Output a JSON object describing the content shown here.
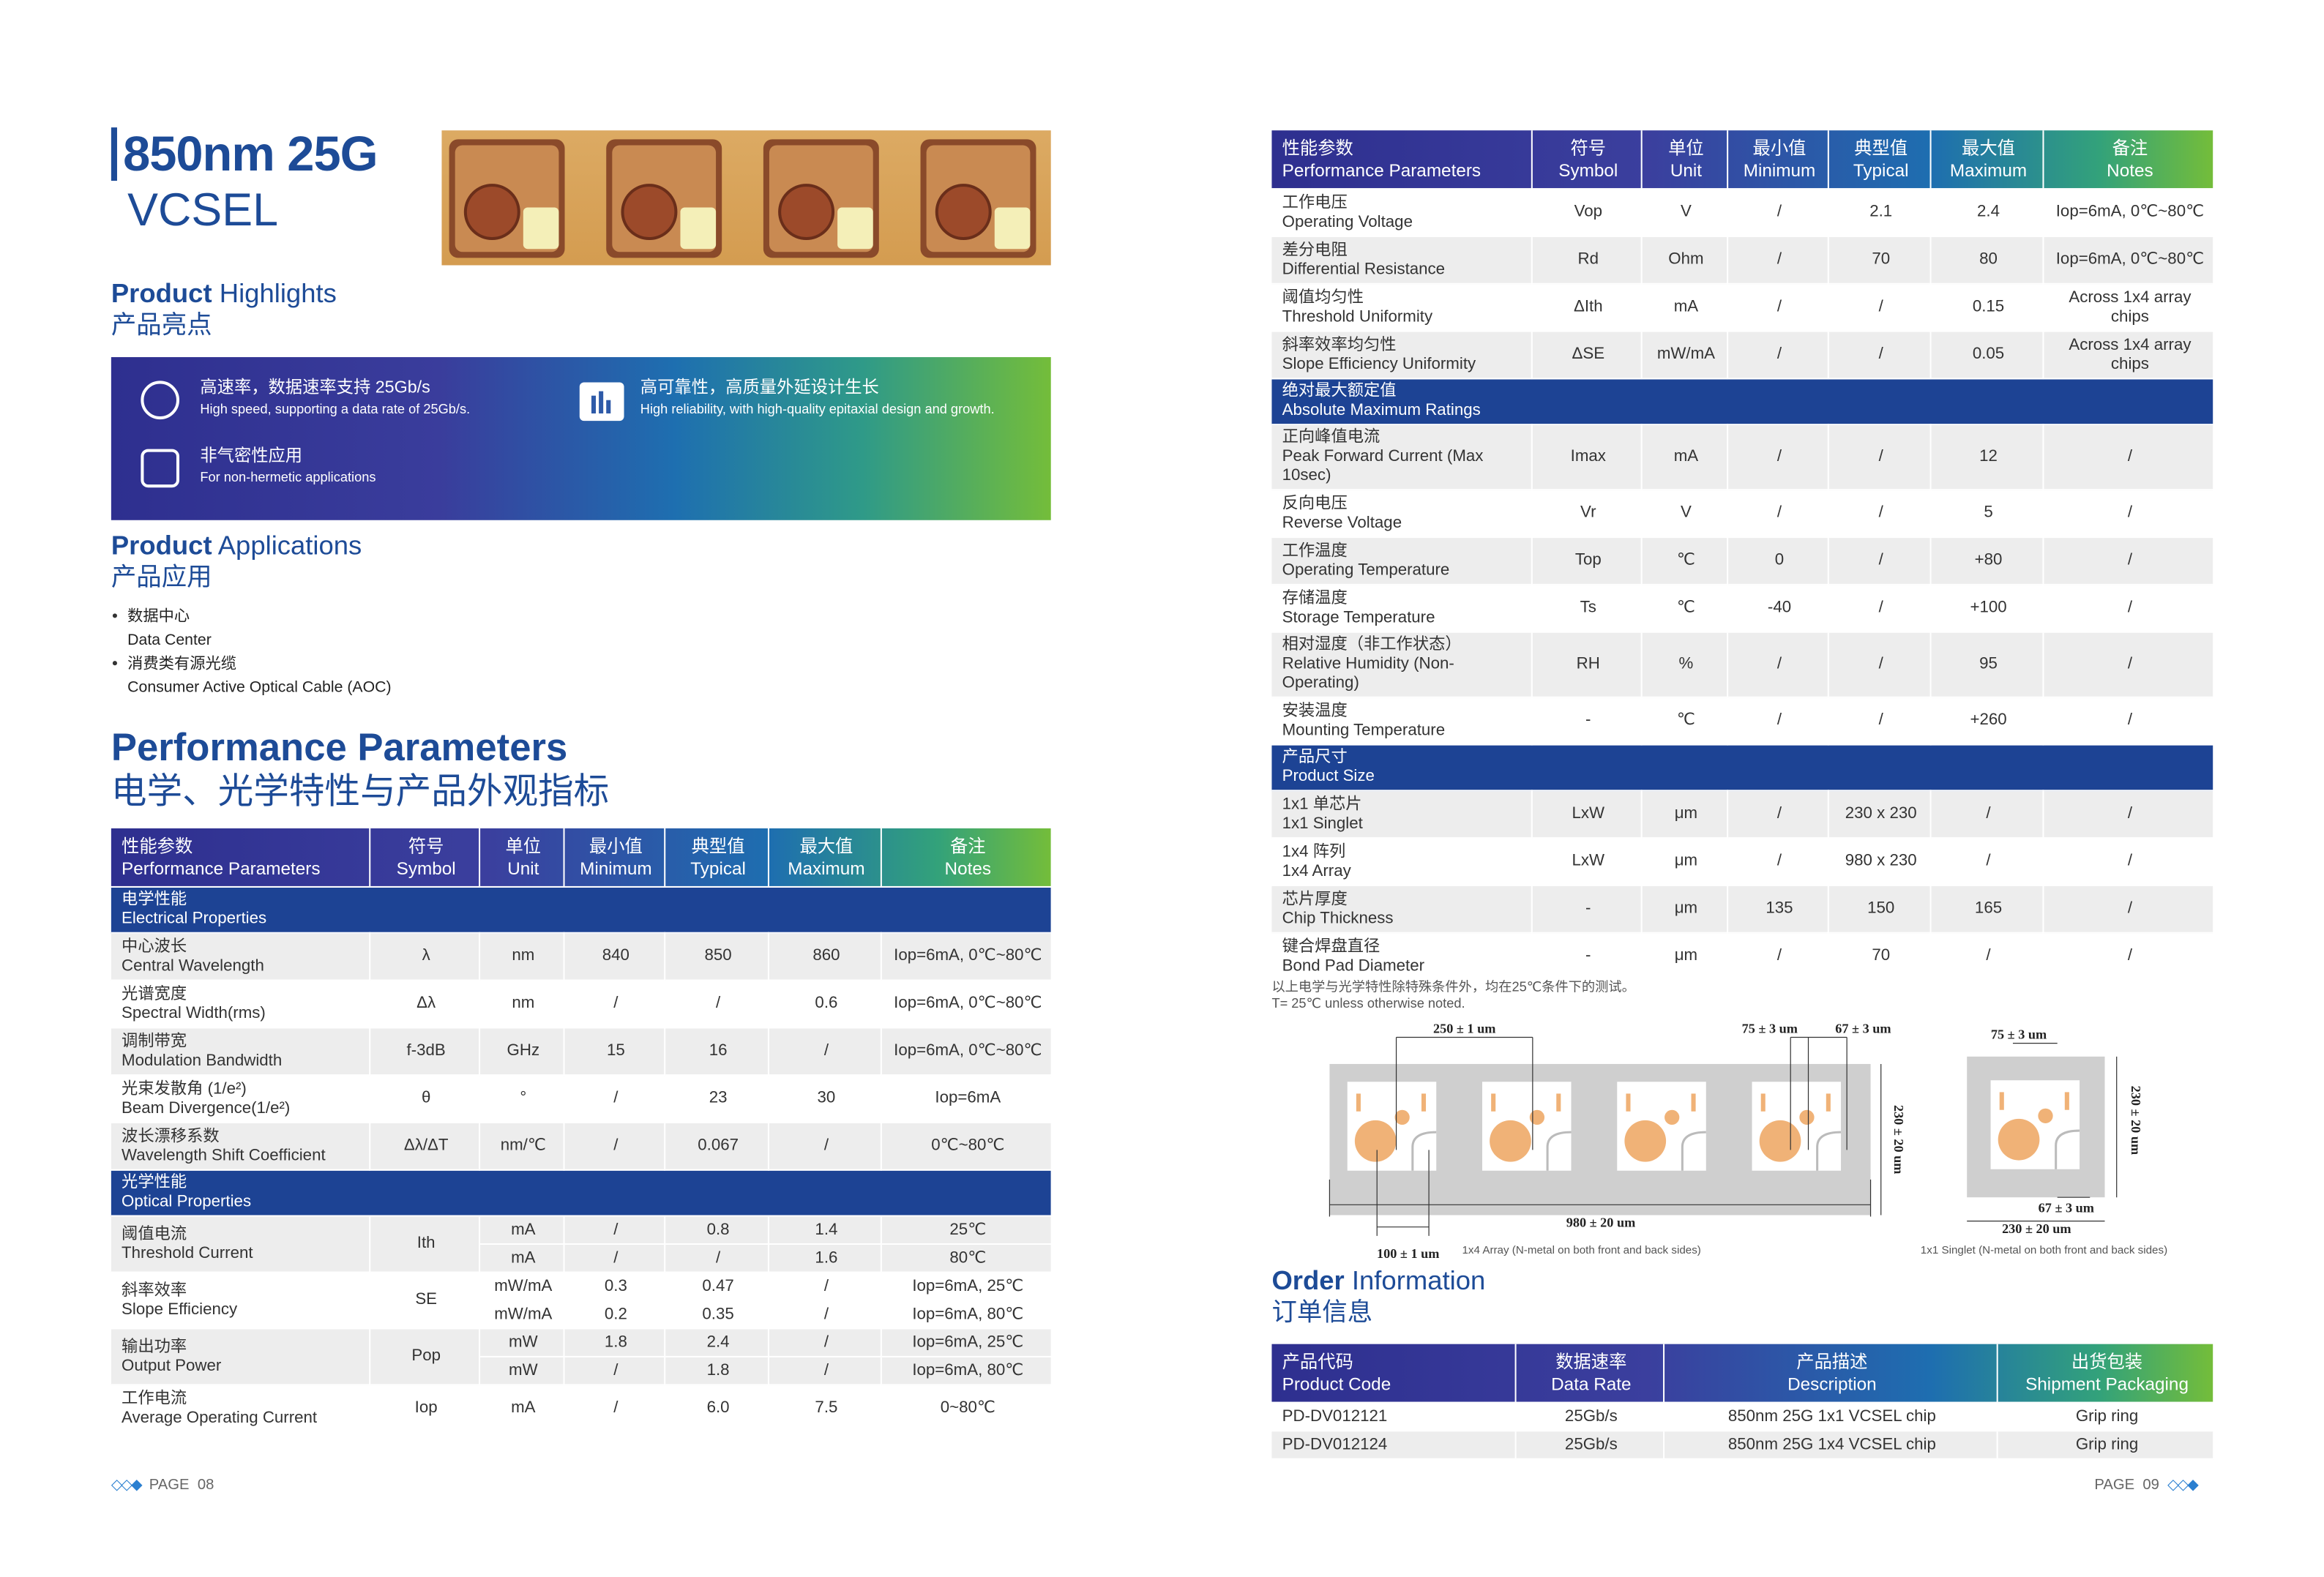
{
  "left": {
    "title": {
      "line1": "850nm 25G",
      "line2": "VCSEL"
    },
    "highlights": {
      "heading_bold": "Product",
      "heading_light": "Highlights",
      "heading_cn": "产品亮点",
      "items": [
        {
          "cn": "高速率，数据速率支持 25Gb/s",
          "en": "High speed, supporting a data rate of 25Gb/s."
        },
        {
          "cn": "高可靠性，高质量外延设计生长",
          "en": "High reliability, with high-quality epitaxial design and growth."
        },
        {
          "cn": "非气密性应用",
          "en": "For non-hermetic applications"
        }
      ]
    },
    "applications": {
      "heading_bold": "Product",
      "heading_light": "Applications",
      "heading_cn": "产品应用",
      "items": [
        {
          "cn": "数据中心",
          "en": "Data Center"
        },
        {
          "cn": "消费类有源光缆",
          "en": "Consumer Active Optical Cable (AOC)"
        }
      ]
    },
    "performance": {
      "heading_en": "Performance Parameters",
      "heading_cn": "电学、光学特性与产品外观指标"
    },
    "table": {
      "header": [
        {
          "cn": "性能参数",
          "en": "Performance Parameters"
        },
        {
          "cn": "符号",
          "en": "Symbol"
        },
        {
          "cn": "单位",
          "en": "Unit"
        },
        {
          "cn": "最小值",
          "en": "Minimum"
        },
        {
          "cn": "典型值",
          "en": "Typical"
        },
        {
          "cn": "最大值",
          "en": "Maximum"
        },
        {
          "cn": "备注",
          "en": "Notes"
        }
      ],
      "rows": [
        {
          "section": {
            "cn": "电学性能",
            "en": "Electrical Properties"
          }
        },
        {
          "cn": "中心波长",
          "en": "Central Wavelength",
          "symbol": "λ",
          "cells": [
            [
              "nm",
              "840",
              "850",
              "860",
              "Iop=6mA, 0℃~80℃"
            ]
          ]
        },
        {
          "cn": "光谱宽度",
          "en": "Spectral Width(rms)",
          "symbol": "Δλ",
          "cells": [
            [
              "nm",
              "/",
              "/",
              "0.6",
              "Iop=6mA, 0℃~80℃"
            ]
          ]
        },
        {
          "cn": "调制带宽",
          "en": "Modulation Bandwidth",
          "symbol": "f-3dB",
          "cells": [
            [
              "GHz",
              "15",
              "16",
              "/",
              "Iop=6mA, 0℃~80℃"
            ]
          ]
        },
        {
          "cn": "光束发散角 (1/e²)",
          "en": "Beam Divergence(1/e²)",
          "symbol": "θ",
          "cells": [
            [
              "°",
              "/",
              "23",
              "30",
              "Iop=6mA"
            ]
          ]
        },
        {
          "cn": "波长漂移系数",
          "en": "Wavelength Shift Coefficient",
          "symbol": "Δλ/ΔT",
          "cells": [
            [
              "nm/℃",
              "/",
              "0.067",
              "/",
              "0℃~80℃"
            ]
          ]
        },
        {
          "section": {
            "cn": "光学性能",
            "en": "Optical Properties"
          }
        },
        {
          "cn": "阈值电流",
          "en": "Threshold Current",
          "symbol": "Ith",
          "cells": [
            [
              "mA",
              "/",
              "0.8",
              "1.4",
              "25℃"
            ],
            [
              "mA",
              "/",
              "/",
              "1.6",
              "80℃"
            ]
          ]
        },
        {
          "cn": "斜率效率",
          "en": "Slope Efficiency",
          "symbol": "SE",
          "cells": [
            [
              "mW/mA",
              "0.3",
              "0.47",
              "/",
              "Iop=6mA, 25℃"
            ],
            [
              "mW/mA",
              "0.2",
              "0.35",
              "/",
              "Iop=6mA, 80℃"
            ]
          ]
        },
        {
          "cn": "输出功率",
          "en": "Output Power",
          "symbol": "Pop",
          "cells": [
            [
              "mW",
              "1.8",
              "2.4",
              "/",
              "Iop=6mA, 25℃"
            ],
            [
              "mW",
              "/",
              "1.8",
              "/",
              "Iop=6mA, 80℃"
            ]
          ]
        },
        {
          "cn": "工作电流",
          "en": "Average Operating Current",
          "symbol": "Iop",
          "cells": [
            [
              "mA",
              "/",
              "6.0",
              "7.5",
              "0~80℃"
            ]
          ]
        }
      ]
    },
    "page": {
      "label": "PAGE",
      "number": "08"
    }
  },
  "right": {
    "table": {
      "header": [
        {
          "cn": "性能参数",
          "en": "Performance Parameters"
        },
        {
          "cn": "符号",
          "en": "Symbol"
        },
        {
          "cn": "单位",
          "en": "Unit"
        },
        {
          "cn": "最小值",
          "en": "Minimum"
        },
        {
          "cn": "典型值",
          "en": "Typical"
        },
        {
          "cn": "最大值",
          "en": "Maximum"
        },
        {
          "cn": "备注",
          "en": "Notes"
        }
      ],
      "rows": [
        {
          "cn": "工作电压",
          "en": "Operating Voltage",
          "symbol": "Vop",
          "cells": [
            [
              "V",
              "/",
              "2.1",
              "2.4",
              "Iop=6mA, 0℃~80℃"
            ]
          ]
        },
        {
          "cn": "差分电阻",
          "en": "Differential Resistance",
          "symbol": "Rd",
          "cells": [
            [
              "Ohm",
              "/",
              "70",
              "80",
              "Iop=6mA, 0℃~80℃"
            ]
          ]
        },
        {
          "cn": "阈值均匀性",
          "en": "Threshold Uniformity",
          "symbol": "ΔIth",
          "cells": [
            [
              "mA",
              "/",
              "/",
              "0.15",
              "Across 1x4 array chips"
            ]
          ]
        },
        {
          "cn": "斜率效率均匀性",
          "en": "Slope Efficiency Uniformity",
          "symbol": "ΔSE",
          "cells": [
            [
              "mW/mA",
              "/",
              "/",
              "0.05",
              "Across 1x4 array chips"
            ]
          ]
        },
        {
          "section": {
            "cn": "绝对最大额定值",
            "en": "Absolute Maximum Ratings"
          }
        },
        {
          "cn": "正向峰值电流",
          "en": "Peak Forward Current (Max 10sec)",
          "symbol": "Imax",
          "cells": [
            [
              "mA",
              "/",
              "/",
              "12",
              "/"
            ]
          ]
        },
        {
          "cn": "反向电压",
          "en": "Reverse Voltage",
          "symbol": "Vr",
          "cells": [
            [
              "V",
              "/",
              "/",
              "5",
              "/"
            ]
          ]
        },
        {
          "cn": "工作温度",
          "en": "Operating Temperature",
          "symbol": "Top",
          "cells": [
            [
              "℃",
              "0",
              "/",
              "+80",
              "/"
            ]
          ]
        },
        {
          "cn": "存储温度",
          "en": "Storage Temperature",
          "symbol": "Ts",
          "cells": [
            [
              "℃",
              "-40",
              "/",
              "+100",
              "/"
            ]
          ]
        },
        {
          "cn": "相对湿度（非工作状态）",
          "en": "Relative Humidity (Non-Operating)",
          "symbol": "RH",
          "cells": [
            [
              "%",
              "/",
              "/",
              "95",
              "/"
            ]
          ]
        },
        {
          "cn": "安装温度",
          "en": "Mounting Temperature",
          "symbol": "-",
          "cells": [
            [
              "℃",
              "/",
              "/",
              "+260",
              "/"
            ]
          ]
        },
        {
          "section": {
            "cn": "产品尺寸",
            "en": "Product Size"
          }
        },
        {
          "cn": "1x1 单芯片",
          "en": "1x1 Singlet",
          "symbol": "LxW",
          "cells": [
            [
              "μm",
              "/",
              "230 x 230",
              "/",
              "/"
            ]
          ]
        },
        {
          "cn": "1x4 阵列",
          "en": "1x4 Array",
          "symbol": "LxW",
          "cells": [
            [
              "μm",
              "/",
              "980 x 230",
              "/",
              "/"
            ]
          ]
        },
        {
          "cn": "芯片厚度",
          "en": "Chip Thickness",
          "symbol": "-",
          "cells": [
            [
              "μm",
              "135",
              "150",
              "165",
              "/"
            ]
          ]
        },
        {
          "cn": "键合焊盘直径",
          "en": "Bond Pad Diameter",
          "symbol": "-",
          "cells": [
            [
              "μm",
              "/",
              "70",
              "/",
              "/"
            ]
          ]
        }
      ]
    },
    "notes": {
      "cn": "以上电学与光学特性除特殊条件外，均在25℃条件下的测试。",
      "en": "T= 25℃ unless otherwise noted."
    },
    "diagram": {
      "array_pitch": "250 ± 1 um",
      "array_pad_width": "75 ± 3 um",
      "array_pad_gap": "67 ± 3 um",
      "array_height": "230 ± 20 um",
      "array_length": "980 ± 20 um",
      "array_edge": "100 ± 1 um",
      "array_caption": "1x4 Array (N-metal on both front and back sides)",
      "singlet_pad_width": "75 ± 3 um",
      "singlet_height": "230 ± 20 um",
      "singlet_pad_gap": "67 ± 3 um",
      "singlet_width": "230 ± 20 um",
      "singlet_caption": "1x1 Singlet (N-metal on both front and back sides)"
    },
    "order": {
      "heading_bold": "Order",
      "heading_light": "Information",
      "heading_cn": "订单信息",
      "header": [
        {
          "cn": "产品代码",
          "en": "Product Code"
        },
        {
          "cn": "数据速率",
          "en": "Data Rate"
        },
        {
          "cn": "产品描述",
          "en": "Description"
        },
        {
          "cn": "出货包装",
          "en": "Shipment Packaging"
        }
      ],
      "rows": [
        [
          "PD-DV012121",
          "25Gb/s",
          "850nm 25G 1x1 VCSEL chip",
          "Grip ring"
        ],
        [
          "PD-DV012124",
          "25Gb/s",
          "850nm 25G 1x4 VCSEL chip",
          "Grip ring"
        ]
      ]
    },
    "page": {
      "label": "PAGE",
      "number": "09"
    }
  }
}
